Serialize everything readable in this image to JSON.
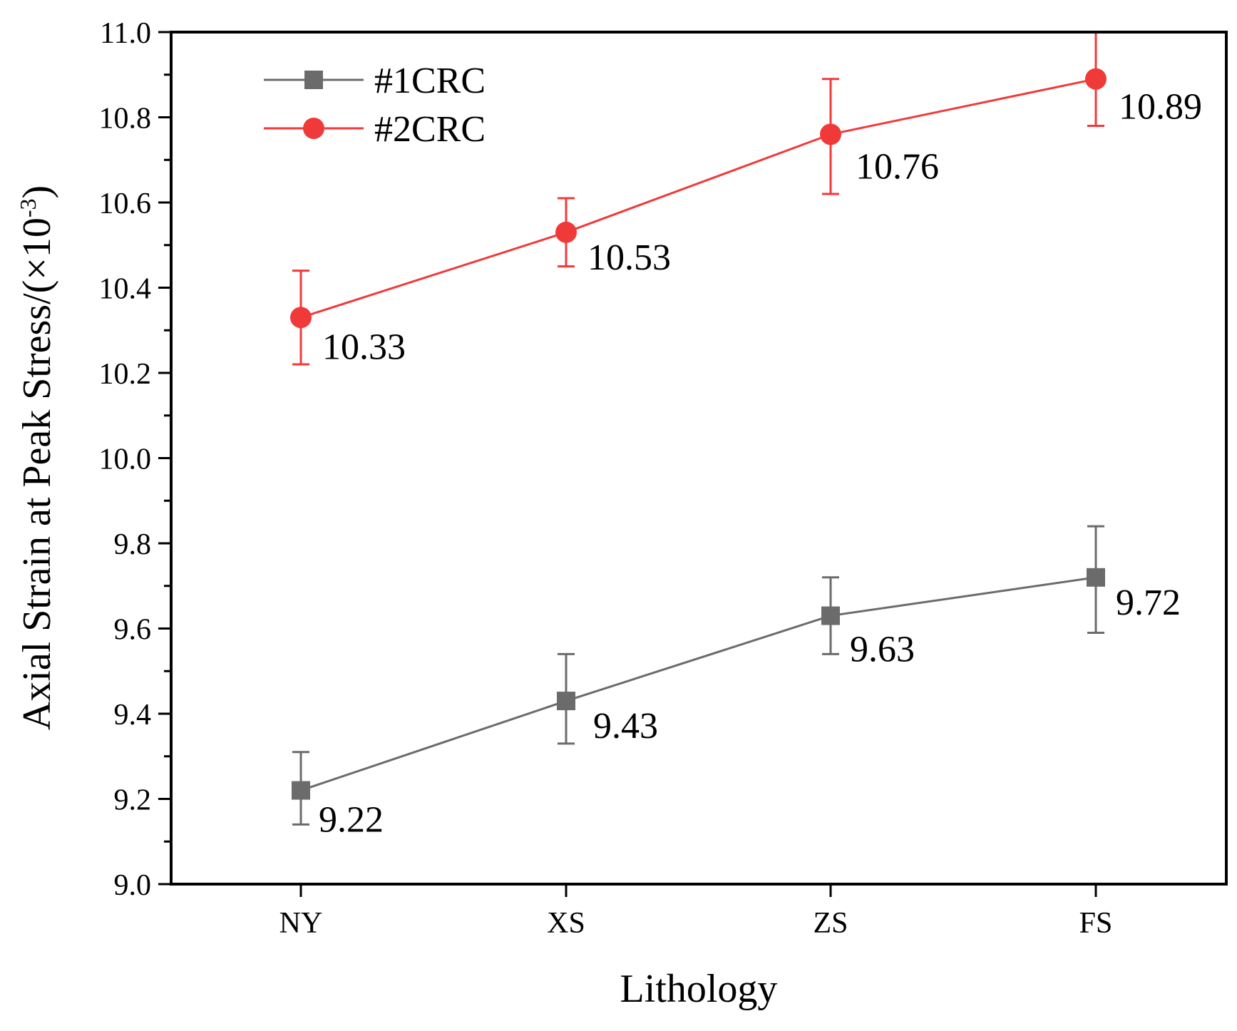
{
  "chart_data": {
    "type": "line",
    "title": "",
    "xlabel": "Lithology",
    "ylabel": "Axial Strain at Peak Stress/(×10",
    "ylabel_sup": "-3",
    "ylabel_close": ")",
    "categories": [
      "NY",
      "XS",
      "ZS",
      "FS"
    ],
    "ylim": [
      9.0,
      11.0
    ],
    "yticks": [
      9.0,
      9.2,
      9.4,
      9.6,
      9.8,
      10.0,
      10.2,
      10.4,
      10.6,
      10.8,
      11.0
    ],
    "ytick_labels": [
      "9.0",
      "9.2",
      "9.4",
      "9.6",
      "9.8",
      "10.0",
      "10.2",
      "10.4",
      "10.6",
      "10.8",
      "11.0"
    ],
    "grid": false,
    "legend_position": "top-left",
    "series": [
      {
        "name": "#1CRC",
        "marker": "square",
        "color": "#6b6b6b",
        "values": [
          9.22,
          9.43,
          9.63,
          9.72
        ],
        "labels": [
          "9.22",
          "9.43",
          "9.63",
          "9.72"
        ],
        "error_low": [
          9.14,
          9.33,
          9.54,
          9.59
        ],
        "error_high": [
          9.31,
          9.54,
          9.72,
          9.84
        ]
      },
      {
        "name": "#2CRC",
        "marker": "circle",
        "color": "#f03a3a",
        "values": [
          10.33,
          10.53,
          10.76,
          10.89
        ],
        "labels": [
          "10.33",
          "10.53",
          "10.76",
          "10.89"
        ],
        "error_low": [
          10.22,
          10.45,
          10.62,
          10.78
        ],
        "error_high": [
          10.44,
          10.61,
          10.89,
          11.0
        ]
      }
    ]
  }
}
